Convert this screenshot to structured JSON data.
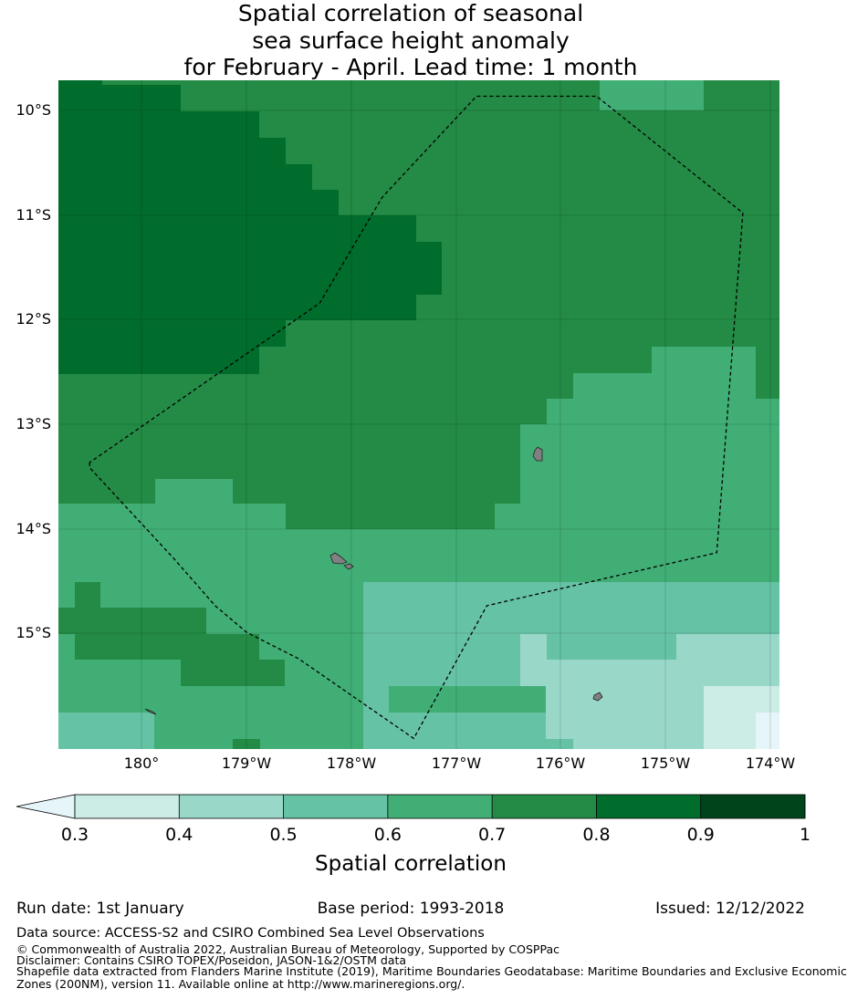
{
  "title": {
    "line1": "Spatial correlation of seasonal",
    "line2": "sea surface height anomaly",
    "line3": "for February - April. Lead time: 1 month"
  },
  "map": {
    "lon_labels": [
      "180°",
      "179°W",
      "178°W",
      "177°W",
      "176°W",
      "175°W",
      "174°W"
    ],
    "lat_labels": [
      "10°S",
      "11°S",
      "12°S",
      "13°S",
      "14°S",
      "15°S"
    ],
    "extent": {
      "lon_min": -180.8,
      "lon_max": -173.9,
      "lat_min": -16.0,
      "lat_max": -9.7
    },
    "eez_boundary": [
      [
        -180.5,
        -13.3
      ],
      [
        -180.5,
        -13.35
      ],
      [
        -179.7,
        -14.2
      ],
      [
        -179.3,
        -14.65
      ],
      [
        -179.0,
        -14.9
      ],
      [
        -178.5,
        -15.15
      ],
      [
        -177.4,
        -15.9
      ],
      [
        -176.7,
        -14.65
      ],
      [
        -174.5,
        -14.15
      ],
      [
        -174.25,
        -10.95
      ],
      [
        -175.65,
        -9.85
      ],
      [
        -176.8,
        -9.85
      ],
      [
        -177.7,
        -10.8
      ],
      [
        -178.3,
        -11.8
      ],
      [
        -180.5,
        -13.3
      ]
    ],
    "colors": {
      "c03": "#ccece6",
      "c04": "#99d8c9",
      "c05": "#66c2a4",
      "c06": "#41ae76",
      "c07": "#238b45",
      "c08": "#006d2c",
      "c09": "#00441b",
      "under": "#e5f5f9",
      "land": "#808080"
    }
  },
  "colorbar": {
    "ticks": [
      "0.3",
      "0.4",
      "0.5",
      "0.6",
      "0.7",
      "0.8",
      "0.9",
      "1"
    ],
    "colors": [
      "#ccece6",
      "#99d8c9",
      "#66c2a4",
      "#41ae76",
      "#238b45",
      "#006d2c",
      "#00441b"
    ],
    "title": "Spatial correlation"
  },
  "info": {
    "run_date": "Run date: 1st January",
    "base_period": "Base period: 1993-2018",
    "issued": "Issued: 12/12/2022"
  },
  "footer": {
    "data_source": "Data source: ACCESS-S2 and CSIRO Combined Sea Level Observations",
    "copyright": "© Commonwealth of Australia 2022, Australian Bureau of Meteorology, Supported by COSPPac",
    "disclaimer": "Disclaimer: Contains CSIRO TOPEX/Poseidon, JASON-1&2/OSTM data",
    "shapefile1": "Shapefile data extracted from Flanders Marine Institute (2019), Maritime Boundaries Geodatabase: Maritime Boundaries and Exclusive Economic",
    "shapefile2": "Zones (200NM), version 11. Available online at http://www.marineregions.org/."
  }
}
